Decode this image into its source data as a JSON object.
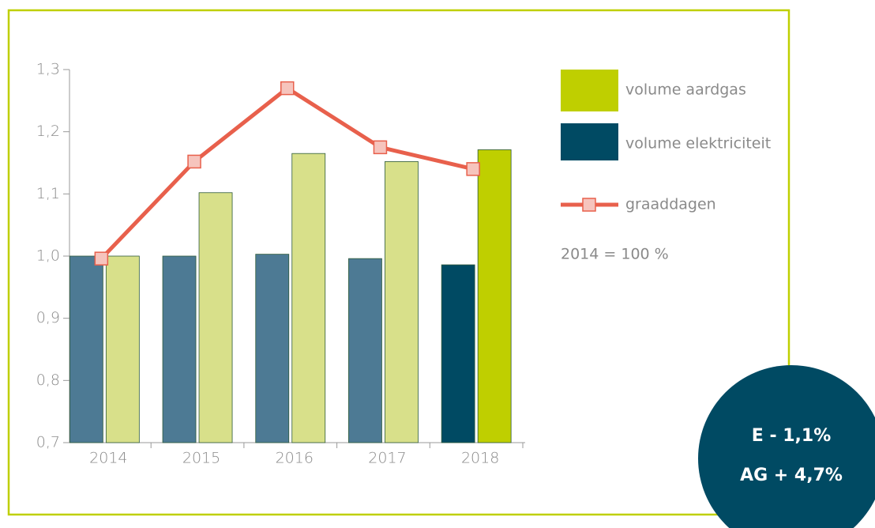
{
  "chart_data": {
    "type": "bar",
    "categories": [
      "2014",
      "2015",
      "2016",
      "2017",
      "2018"
    ],
    "series": [
      {
        "name": "volume elektriciteit",
        "color": "#004a63",
        "colors": [
          "#4d7a94",
          "#4d7a94",
          "#4d7a94",
          "#4d7a94",
          "#004a63"
        ],
        "values": [
          1.0,
          1.0,
          1.003,
          0.996,
          0.986
        ]
      },
      {
        "name": "volume aardgas",
        "color": "#bfcf00",
        "colors": [
          "#d8e08a",
          "#d8e08a",
          "#d8e08a",
          "#d8e08a",
          "#bfcf00"
        ],
        "values": [
          1.0,
          1.102,
          1.165,
          1.152,
          1.171
        ]
      },
      {
        "name": "graaddagen",
        "type": "line",
        "color": "#e8604c",
        "marker_color": "#f6c4bd",
        "values": [
          0.996,
          1.152,
          1.27,
          1.175,
          1.14
        ]
      }
    ],
    "ylim": [
      0.7,
      1.3
    ],
    "yticks": [
      {
        "value": 0.7,
        "label": "0,7"
      },
      {
        "value": 0.8,
        "label": "0,8"
      },
      {
        "value": 0.9,
        "label": "0,9"
      },
      {
        "value": 1.0,
        "label": "1,0"
      },
      {
        "value": 1.1,
        "label": "1,1"
      },
      {
        "value": 1.2,
        "label": "1,2"
      },
      {
        "value": 1.3,
        "label": "1,3"
      }
    ],
    "note": "2014 = 100 %",
    "badge": [
      "E - 1,1%",
      "AG + 4,7%"
    ]
  }
}
